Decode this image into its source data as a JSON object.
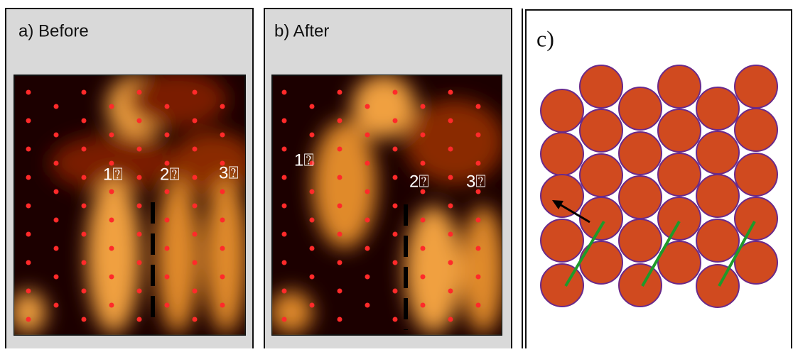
{
  "panels": [
    {
      "label": "a) Before",
      "numbers": [
        "1⍰",
        "2⍰",
        "3⍰"
      ]
    },
    {
      "label": "b) After",
      "numbers": [
        "1⍰",
        "2⍰",
        "3⍰"
      ]
    }
  ],
  "panel_c": {
    "label": "c)"
  }
}
